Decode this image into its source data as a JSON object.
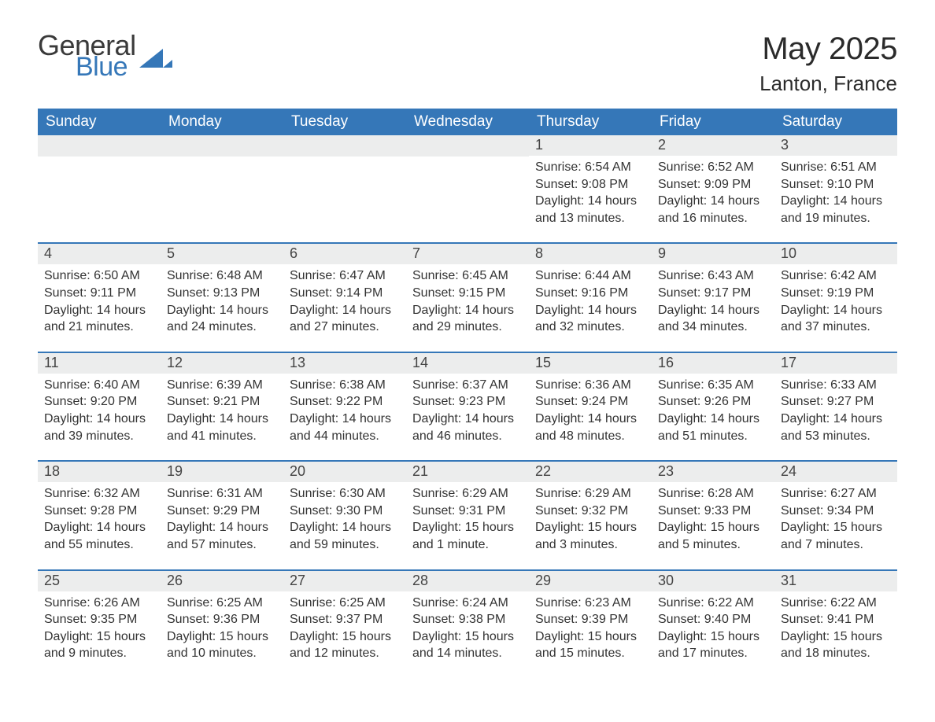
{
  "logo": {
    "part1": "General",
    "part2": "Blue"
  },
  "title": "May 2025",
  "location": "Lanton, France",
  "colors": {
    "header_bg": "#3577b8",
    "header_text": "#ffffff",
    "daynum_bg": "#eceded",
    "body_text": "#333333",
    "week_border": "#3577b8"
  },
  "weekdays": [
    "Sunday",
    "Monday",
    "Tuesday",
    "Wednesday",
    "Thursday",
    "Friday",
    "Saturday"
  ],
  "weeks": [
    [
      null,
      null,
      null,
      null,
      {
        "n": "1",
        "sunrise": "Sunrise: 6:54 AM",
        "sunset": "Sunset: 9:08 PM",
        "daylight": "Daylight: 14 hours and 13 minutes."
      },
      {
        "n": "2",
        "sunrise": "Sunrise: 6:52 AM",
        "sunset": "Sunset: 9:09 PM",
        "daylight": "Daylight: 14 hours and 16 minutes."
      },
      {
        "n": "3",
        "sunrise": "Sunrise: 6:51 AM",
        "sunset": "Sunset: 9:10 PM",
        "daylight": "Daylight: 14 hours and 19 minutes."
      }
    ],
    [
      {
        "n": "4",
        "sunrise": "Sunrise: 6:50 AM",
        "sunset": "Sunset: 9:11 PM",
        "daylight": "Daylight: 14 hours and 21 minutes."
      },
      {
        "n": "5",
        "sunrise": "Sunrise: 6:48 AM",
        "sunset": "Sunset: 9:13 PM",
        "daylight": "Daylight: 14 hours and 24 minutes."
      },
      {
        "n": "6",
        "sunrise": "Sunrise: 6:47 AM",
        "sunset": "Sunset: 9:14 PM",
        "daylight": "Daylight: 14 hours and 27 minutes."
      },
      {
        "n": "7",
        "sunrise": "Sunrise: 6:45 AM",
        "sunset": "Sunset: 9:15 PM",
        "daylight": "Daylight: 14 hours and 29 minutes."
      },
      {
        "n": "8",
        "sunrise": "Sunrise: 6:44 AM",
        "sunset": "Sunset: 9:16 PM",
        "daylight": "Daylight: 14 hours and 32 minutes."
      },
      {
        "n": "9",
        "sunrise": "Sunrise: 6:43 AM",
        "sunset": "Sunset: 9:17 PM",
        "daylight": "Daylight: 14 hours and 34 minutes."
      },
      {
        "n": "10",
        "sunrise": "Sunrise: 6:42 AM",
        "sunset": "Sunset: 9:19 PM",
        "daylight": "Daylight: 14 hours and 37 minutes."
      }
    ],
    [
      {
        "n": "11",
        "sunrise": "Sunrise: 6:40 AM",
        "sunset": "Sunset: 9:20 PM",
        "daylight": "Daylight: 14 hours and 39 minutes."
      },
      {
        "n": "12",
        "sunrise": "Sunrise: 6:39 AM",
        "sunset": "Sunset: 9:21 PM",
        "daylight": "Daylight: 14 hours and 41 minutes."
      },
      {
        "n": "13",
        "sunrise": "Sunrise: 6:38 AM",
        "sunset": "Sunset: 9:22 PM",
        "daylight": "Daylight: 14 hours and 44 minutes."
      },
      {
        "n": "14",
        "sunrise": "Sunrise: 6:37 AM",
        "sunset": "Sunset: 9:23 PM",
        "daylight": "Daylight: 14 hours and 46 minutes."
      },
      {
        "n": "15",
        "sunrise": "Sunrise: 6:36 AM",
        "sunset": "Sunset: 9:24 PM",
        "daylight": "Daylight: 14 hours and 48 minutes."
      },
      {
        "n": "16",
        "sunrise": "Sunrise: 6:35 AM",
        "sunset": "Sunset: 9:26 PM",
        "daylight": "Daylight: 14 hours and 51 minutes."
      },
      {
        "n": "17",
        "sunrise": "Sunrise: 6:33 AM",
        "sunset": "Sunset: 9:27 PM",
        "daylight": "Daylight: 14 hours and 53 minutes."
      }
    ],
    [
      {
        "n": "18",
        "sunrise": "Sunrise: 6:32 AM",
        "sunset": "Sunset: 9:28 PM",
        "daylight": "Daylight: 14 hours and 55 minutes."
      },
      {
        "n": "19",
        "sunrise": "Sunrise: 6:31 AM",
        "sunset": "Sunset: 9:29 PM",
        "daylight": "Daylight: 14 hours and 57 minutes."
      },
      {
        "n": "20",
        "sunrise": "Sunrise: 6:30 AM",
        "sunset": "Sunset: 9:30 PM",
        "daylight": "Daylight: 14 hours and 59 minutes."
      },
      {
        "n": "21",
        "sunrise": "Sunrise: 6:29 AM",
        "sunset": "Sunset: 9:31 PM",
        "daylight": "Daylight: 15 hours and 1 minute."
      },
      {
        "n": "22",
        "sunrise": "Sunrise: 6:29 AM",
        "sunset": "Sunset: 9:32 PM",
        "daylight": "Daylight: 15 hours and 3 minutes."
      },
      {
        "n": "23",
        "sunrise": "Sunrise: 6:28 AM",
        "sunset": "Sunset: 9:33 PM",
        "daylight": "Daylight: 15 hours and 5 minutes."
      },
      {
        "n": "24",
        "sunrise": "Sunrise: 6:27 AM",
        "sunset": "Sunset: 9:34 PM",
        "daylight": "Daylight: 15 hours and 7 minutes."
      }
    ],
    [
      {
        "n": "25",
        "sunrise": "Sunrise: 6:26 AM",
        "sunset": "Sunset: 9:35 PM",
        "daylight": "Daylight: 15 hours and 9 minutes."
      },
      {
        "n": "26",
        "sunrise": "Sunrise: 6:25 AM",
        "sunset": "Sunset: 9:36 PM",
        "daylight": "Daylight: 15 hours and 10 minutes."
      },
      {
        "n": "27",
        "sunrise": "Sunrise: 6:25 AM",
        "sunset": "Sunset: 9:37 PM",
        "daylight": "Daylight: 15 hours and 12 minutes."
      },
      {
        "n": "28",
        "sunrise": "Sunrise: 6:24 AM",
        "sunset": "Sunset: 9:38 PM",
        "daylight": "Daylight: 15 hours and 14 minutes."
      },
      {
        "n": "29",
        "sunrise": "Sunrise: 6:23 AM",
        "sunset": "Sunset: 9:39 PM",
        "daylight": "Daylight: 15 hours and 15 minutes."
      },
      {
        "n": "30",
        "sunrise": "Sunrise: 6:22 AM",
        "sunset": "Sunset: 9:40 PM",
        "daylight": "Daylight: 15 hours and 17 minutes."
      },
      {
        "n": "31",
        "sunrise": "Sunrise: 6:22 AM",
        "sunset": "Sunset: 9:41 PM",
        "daylight": "Daylight: 15 hours and 18 minutes."
      }
    ]
  ]
}
